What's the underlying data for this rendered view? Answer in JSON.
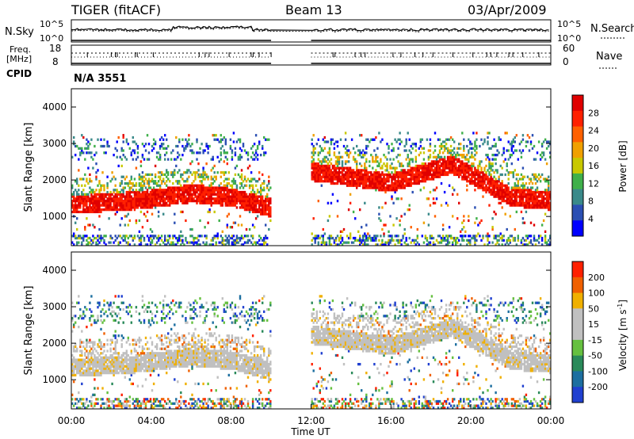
{
  "header": {
    "station": "TIGER (fitACF)",
    "beam": "Beam 13",
    "date": "03/Apr/2009"
  },
  "summary_panels": {
    "nsky_label": "N.Sky",
    "nsky_ticks": [
      "10^5",
      "10^0"
    ],
    "nsearch_label": "N.Search",
    "freq_label_1": "Freq.",
    "freq_label_2": "[MHz]",
    "freq_ticks": [
      "18",
      "8"
    ],
    "nave_ticks": [
      "60",
      "0"
    ],
    "nave_label": "Nave",
    "cpid_label": "CPID",
    "cpid_text": "N/A 3551"
  },
  "colors": {
    "power_scale": [
      "#0000ff",
      "#2b4fb3",
      "#3a8a8a",
      "#3fb04a",
      "#c8c800",
      "#f0a000",
      "#ff6000",
      "#ff2000",
      "#e00000"
    ],
    "velocity_scale": [
      "#2040d0",
      "#1d6fa0",
      "#2a8a5a",
      "#66c040",
      "#c0c0c0",
      "#c0c0c0",
      "#f0b000",
      "#f06000",
      "#ff2000"
    ]
  },
  "chart_data": [
    {
      "type": "heatmap",
      "parameter": "Power",
      "ylabel": "Slant Range [km]",
      "yticks": [
        "4000",
        "3000",
        "2000",
        "1000"
      ],
      "ylim": [
        200,
        4500
      ],
      "xlim": [
        "00:00",
        "24:00"
      ],
      "data_gap": [
        "10:00",
        "12:00"
      ],
      "colorbar": {
        "label": "Power [dB]",
        "ticks": [
          "28",
          "24",
          "20",
          "16",
          "12",
          "8",
          "4"
        ]
      },
      "main_echo_band_km": [
        {
          "x": "00:00",
          "y": 1300
        },
        {
          "x": "03:00",
          "y": 1400
        },
        {
          "x": "06:00",
          "y": 1600
        },
        {
          "x": "08:00",
          "y": 1500
        },
        {
          "x": "10:00",
          "y": 1200
        },
        {
          "x": "12:00",
          "y": 2200
        },
        {
          "x": "16:00",
          "y": 1900
        },
        {
          "x": "19:00",
          "y": 2400
        },
        {
          "x": "22:00",
          "y": 1500
        },
        {
          "x": "24:00",
          "y": 1400
        }
      ]
    },
    {
      "type": "heatmap",
      "parameter": "Velocity",
      "ylabel": "Slant Range [km]",
      "yticks": [
        "4000",
        "3000",
        "2000",
        "1000"
      ],
      "ylim": [
        200,
        4500
      ],
      "xlim": [
        "00:00",
        "24:00"
      ],
      "data_gap": [
        "10:00",
        "12:00"
      ],
      "xticks": [
        "00:00",
        "04:00",
        "08:00",
        "12:00",
        "16:00",
        "20:00",
        "00:00"
      ],
      "xlabel": "Time UT",
      "colorbar": {
        "label": "Velocity [m s",
        "label_sup": "-1",
        "label_end": "]",
        "ticks": [
          "200",
          "100",
          "50",
          "15",
          "-15",
          "-50",
          "-100",
          "-200"
        ]
      }
    }
  ]
}
